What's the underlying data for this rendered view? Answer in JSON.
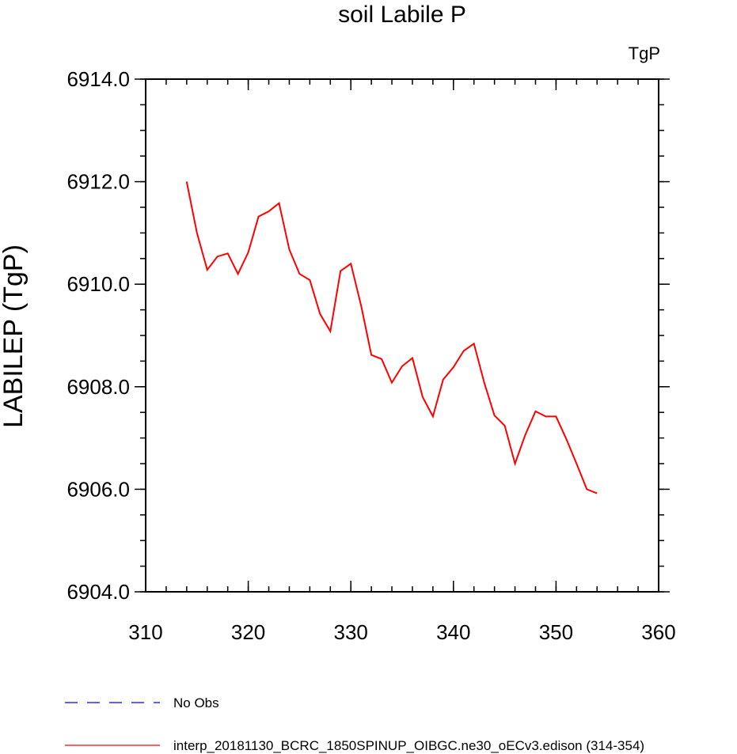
{
  "chart_data": {
    "type": "line",
    "title": "soil Labile P",
    "units_label": "TgP",
    "xlabel": "",
    "ylabel": "LABILEP  (TgP)",
    "xlim": [
      310,
      360
    ],
    "ylim": [
      6904.0,
      6914.0
    ],
    "x_ticks": [
      "310",
      "320",
      "330",
      "340",
      "350",
      "360"
    ],
    "y_ticks": [
      "6904.0",
      "6906.0",
      "6908.0",
      "6910.0",
      "6912.0",
      "6914.0"
    ],
    "series": [
      {
        "name": "interp_20181130_BCRC_1850SPINUP_OIBGC.ne30_oECv3.edison (314-354)",
        "color": "#ff0000",
        "style": "solid",
        "x": [
          314,
          315,
          316,
          317,
          318,
          319,
          320,
          321,
          322,
          323,
          324,
          325,
          326,
          327,
          328,
          329,
          330,
          331,
          332,
          333,
          334,
          335,
          336,
          337,
          338,
          339,
          340,
          341,
          342,
          343,
          344,
          345,
          346,
          347,
          348,
          349,
          350,
          351,
          352,
          353,
          354
        ],
        "values": [
          6912.0,
          6911.0,
          6910.28,
          6910.54,
          6910.6,
          6910.2,
          6910.62,
          6911.32,
          6911.42,
          6911.58,
          6910.68,
          6910.2,
          6910.08,
          6909.42,
          6909.08,
          6910.26,
          6910.4,
          6909.58,
          6908.62,
          6908.54,
          6908.08,
          6908.4,
          6908.56,
          6907.8,
          6907.42,
          6908.14,
          6908.38,
          6908.7,
          6908.84,
          6908.08,
          6907.44,
          6907.24,
          6906.5,
          6907.06,
          6907.52,
          6907.42,
          6907.42,
          6906.98,
          6906.5,
          6906.0,
          6905.92
        ]
      }
    ],
    "legend": [
      {
        "label": "No Obs",
        "color": "#0000ff",
        "style": "dashed"
      },
      {
        "label": "interp_20181130_BCRC_1850SPINUP_OIBGC.ne30_oECv3.edison (314-354)",
        "color": "#ff0000",
        "style": "solid"
      }
    ]
  }
}
